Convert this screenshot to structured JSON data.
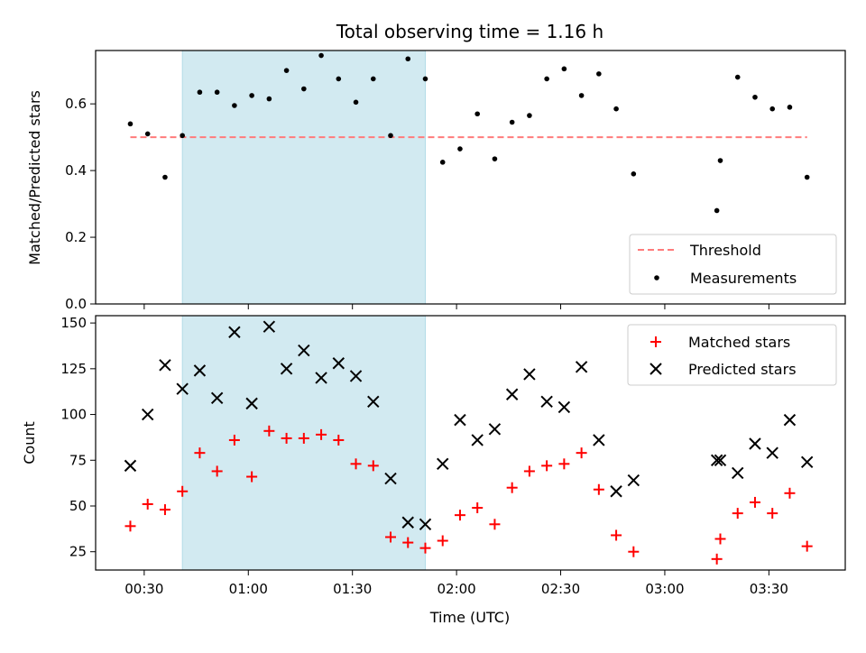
{
  "chart_data": [
    {
      "type": "scatter",
      "title": "Total observing time = 1.16 h",
      "xlabel": "",
      "ylabel": "Matched/Predicted stars",
      "xlim": [
        "00:16",
        "03:52"
      ],
      "ylim": [
        0,
        0.76
      ],
      "xticks": [
        "00:30",
        "01:00",
        "01:30",
        "02:00",
        "02:30",
        "03:00",
        "03:30"
      ],
      "xticklabels_visible": false,
      "yticks": [
        0,
        0.2,
        0.4,
        0.6
      ],
      "yticklabels": [
        "0.0",
        "0.2",
        "0.4",
        "0.6"
      ],
      "highlight_span": {
        "x0": "00:41",
        "x1": "01:51",
        "color": "#add8e6"
      },
      "threshold": {
        "name": "Threshold",
        "value": 0.5,
        "x0": "00:26",
        "x1": "03:41",
        "color": "#ff7b7b",
        "style": "dashed"
      },
      "legend": {
        "position": "lower-right",
        "entries": [
          "Threshold",
          "Measurements"
        ]
      },
      "series": [
        {
          "name": "Measurements",
          "marker": "dot",
          "color": "#000000",
          "x": [
            "00:26",
            "00:31",
            "00:36",
            "00:41",
            "00:46",
            "00:51",
            "00:56",
            "01:01",
            "01:06",
            "01:11",
            "01:16",
            "01:21",
            "01:26",
            "01:31",
            "01:36",
            "01:41",
            "01:46",
            "01:51",
            "01:56",
            "02:01",
            "02:06",
            "02:11",
            "02:16",
            "02:21",
            "02:26",
            "02:31",
            "02:36",
            "02:41",
            "02:46",
            "02:51",
            "03:15",
            "03:16",
            "03:21",
            "03:26",
            "03:31",
            "03:36",
            "03:41"
          ],
          "y": [
            0.54,
            0.51,
            0.38,
            0.505,
            0.635,
            0.635,
            0.595,
            0.625,
            0.615,
            0.7,
            0.645,
            0.745,
            0.675,
            0.605,
            0.675,
            0.505,
            0.735,
            0.675,
            0.425,
            0.465,
            0.57,
            0.435,
            0.545,
            0.565,
            0.675,
            0.705,
            0.625,
            0.69,
            0.585,
            0.39,
            0.28,
            0.43,
            0.68,
            0.62,
            0.585,
            0.59,
            0.38
          ]
        }
      ]
    },
    {
      "type": "scatter",
      "title": "",
      "xlabel": "Time (UTC)",
      "ylabel": "Count",
      "xlim": [
        "00:16",
        "03:52"
      ],
      "ylim": [
        15,
        154
      ],
      "xticks": [
        "00:30",
        "01:00",
        "01:30",
        "02:00",
        "02:30",
        "03:00",
        "03:30"
      ],
      "yticks": [
        25,
        50,
        75,
        100,
        125,
        150
      ],
      "highlight_span": {
        "x0": "00:41",
        "x1": "01:51",
        "color": "#add8e6"
      },
      "legend": {
        "position": "upper-right",
        "entries": [
          "Matched stars",
          "Predicted stars"
        ]
      },
      "series": [
        {
          "name": "Matched stars",
          "marker": "plus",
          "color": "#ff0000",
          "x": [
            "00:26",
            "00:31",
            "00:36",
            "00:41",
            "00:46",
            "00:51",
            "00:56",
            "01:01",
            "01:06",
            "01:11",
            "01:16",
            "01:21",
            "01:26",
            "01:31",
            "01:36",
            "01:41",
            "01:46",
            "01:51",
            "01:56",
            "02:01",
            "02:06",
            "02:11",
            "02:16",
            "02:21",
            "02:26",
            "02:31",
            "02:36",
            "02:41",
            "02:46",
            "02:51",
            "03:15",
            "03:16",
            "03:21",
            "03:26",
            "03:31",
            "03:36",
            "03:41"
          ],
          "y": [
            39,
            51,
            48,
            58,
            79,
            69,
            86,
            66,
            91,
            87,
            87,
            89,
            86,
            73,
            72,
            33,
            30,
            27,
            31,
            45,
            49,
            40,
            60,
            69,
            72,
            73,
            79,
            59,
            34,
            25,
            21,
            32,
            46,
            52,
            46,
            57,
            28
          ]
        },
        {
          "name": "Predicted stars",
          "marker": "x",
          "color": "#000000",
          "x": [
            "00:26",
            "00:31",
            "00:36",
            "00:41",
            "00:46",
            "00:51",
            "00:56",
            "01:01",
            "01:06",
            "01:11",
            "01:16",
            "01:21",
            "01:26",
            "01:31",
            "01:36",
            "01:41",
            "01:46",
            "01:51",
            "01:56",
            "02:01",
            "02:06",
            "02:11",
            "02:16",
            "02:21",
            "02:26",
            "02:31",
            "02:36",
            "02:41",
            "02:46",
            "02:51",
            "03:15",
            "03:16",
            "03:21",
            "03:26",
            "03:31",
            "03:36",
            "03:41"
          ],
          "y": [
            72,
            100,
            127,
            114,
            124,
            109,
            145,
            106,
            148,
            125,
            135,
            120,
            128,
            121,
            107,
            65,
            41,
            40,
            73,
            97,
            86,
            92,
            111,
            122,
            107,
            104,
            126,
            86,
            58,
            64,
            75,
            75,
            68,
            84,
            79,
            97,
            74
          ]
        }
      ]
    }
  ]
}
